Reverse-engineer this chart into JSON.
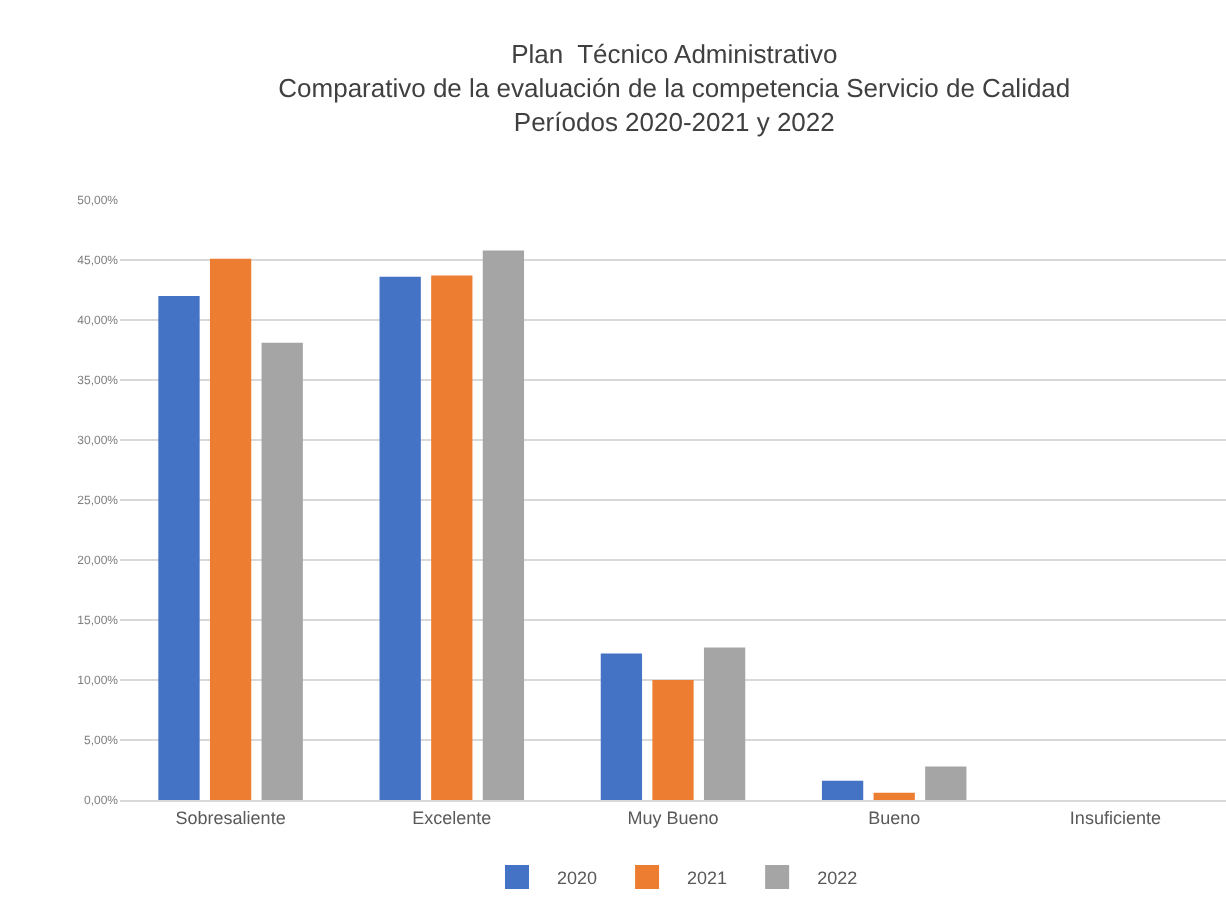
{
  "chart_data": {
    "type": "bar",
    "title": "Plan  Técnico Administrativo\nComparativo de la evaluación de la competencia Servicio de Calidad\nPeríodos 2020-2021 y 2022",
    "categories": [
      "Sobresaliente",
      "Excelente",
      "Muy Bueno",
      "Bueno",
      "Insuficiente"
    ],
    "series": [
      {
        "name": "2020",
        "color": "#4472c4",
        "values": [
          42.0,
          43.6,
          12.2,
          1.6,
          0
        ]
      },
      {
        "name": "2021",
        "color": "#ed7d31",
        "values": [
          45.1,
          43.7,
          10.0,
          0.6,
          0
        ]
      },
      {
        "name": "2022",
        "color": "#a5a5a5",
        "values": [
          38.1,
          45.8,
          12.7,
          2.8,
          0
        ]
      }
    ],
    "ylim": [
      0,
      50
    ],
    "yticks": [
      {
        "value": 0,
        "label": "0,00%"
      },
      {
        "value": 5,
        "label": "5,00%"
      },
      {
        "value": 10,
        "label": "10,00%"
      },
      {
        "value": 15,
        "label": "15,00%"
      },
      {
        "value": 20,
        "label": "20,00%"
      },
      {
        "value": 25,
        "label": "25,00%"
      },
      {
        "value": 30,
        "label": "30,00%"
      },
      {
        "value": 35,
        "label": "35,00%"
      },
      {
        "value": 40,
        "label": "40,00%"
      },
      {
        "value": 45,
        "label": "45,00%"
      },
      {
        "value": 50,
        "label": "50,00%"
      }
    ],
    "grid": "y",
    "legend": "bottom"
  }
}
